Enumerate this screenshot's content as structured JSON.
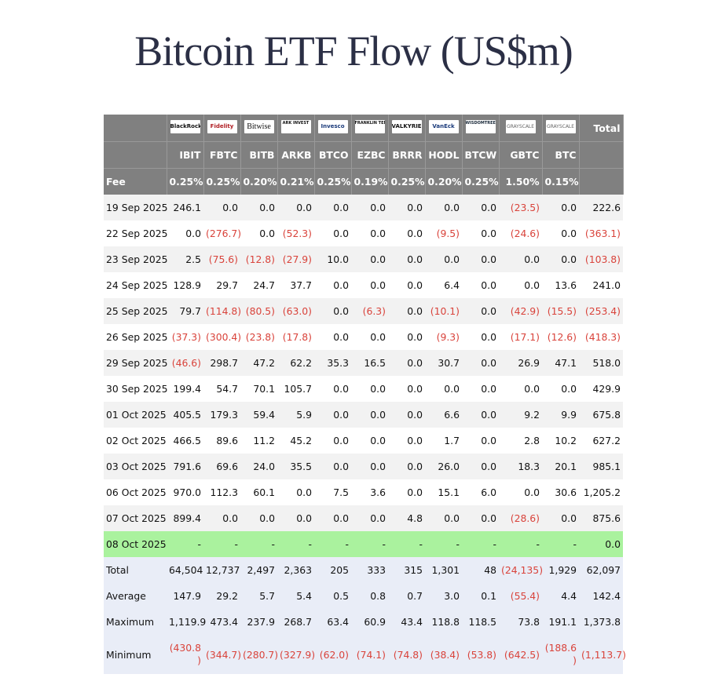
{
  "title": "Bitcoin ETF Flow (US$m)",
  "logos": [
    {
      "text": "BlackRock",
      "icon": "blackrock-logo"
    },
    {
      "text": "Fidelity",
      "icon": "fidelity-logo"
    },
    {
      "text": "Bitwise",
      "icon": "bitwise-logo"
    },
    {
      "text": "ARK INVEST",
      "icon": "ark-logo"
    },
    {
      "text": "Invesco",
      "icon": "invesco-logo"
    },
    {
      "text": "FRANKLIN TEMPLETON",
      "icon": "franklin-logo"
    },
    {
      "text": "VALKYRIE",
      "icon": "valkyrie-logo"
    },
    {
      "text": "VanEck",
      "icon": "vaneck-logo"
    },
    {
      "text": "WISDOMTREE",
      "icon": "wisdomtree-logo"
    },
    {
      "text": "GRAYSCALE",
      "icon": "grayscale-logo"
    },
    {
      "text": "GRAYSCALE",
      "icon": "grayscale-logo"
    }
  ],
  "total_header": "Total",
  "tickers": [
    "IBIT",
    "FBTC",
    "BITB",
    "ARKB",
    "BTCO",
    "EZBC",
    "BRRR",
    "HODL",
    "BTCW",
    "GBTC",
    "BTC"
  ],
  "fee_label": "Fee",
  "fees": [
    "0.25%",
    "0.25%",
    "0.20%",
    "0.21%",
    "0.25%",
    "0.19%",
    "0.25%",
    "0.20%",
    "0.25%",
    "1.50%",
    "0.15%"
  ],
  "rows": [
    {
      "date": "19 Sep 2025",
      "values": [
        "246.1",
        "0.0",
        "0.0",
        "0.0",
        "0.0",
        "0.0",
        "0.0",
        "0.0",
        "0.0",
        "(23.5)",
        "0.0"
      ],
      "total": "222.6"
    },
    {
      "date": "22 Sep 2025",
      "values": [
        "0.0",
        "(276.7)",
        "0.0",
        "(52.3)",
        "0.0",
        "0.0",
        "0.0",
        "(9.5)",
        "0.0",
        "(24.6)",
        "0.0"
      ],
      "total": "(363.1)"
    },
    {
      "date": "23 Sep 2025",
      "values": [
        "2.5",
        "(75.6)",
        "(12.8)",
        "(27.9)",
        "10.0",
        "0.0",
        "0.0",
        "0.0",
        "0.0",
        "0.0",
        "0.0"
      ],
      "total": "(103.8)"
    },
    {
      "date": "24 Sep 2025",
      "values": [
        "128.9",
        "29.7",
        "24.7",
        "37.7",
        "0.0",
        "0.0",
        "0.0",
        "6.4",
        "0.0",
        "0.0",
        "13.6"
      ],
      "total": "241.0"
    },
    {
      "date": "25 Sep 2025",
      "values": [
        "79.7",
        "(114.8)",
        "(80.5)",
        "(63.0)",
        "0.0",
        "(6.3)",
        "0.0",
        "(10.1)",
        "0.0",
        "(42.9)",
        "(15.5)"
      ],
      "total": "(253.4)"
    },
    {
      "date": "26 Sep 2025",
      "values": [
        "(37.3)",
        "(300.4)",
        "(23.8)",
        "(17.8)",
        "0.0",
        "0.0",
        "0.0",
        "(9.3)",
        "0.0",
        "(17.1)",
        "(12.6)"
      ],
      "total": "(418.3)"
    },
    {
      "date": "29 Sep 2025",
      "values": [
        "(46.6)",
        "298.7",
        "47.2",
        "62.2",
        "35.3",
        "16.5",
        "0.0",
        "30.7",
        "0.0",
        "26.9",
        "47.1"
      ],
      "total": "518.0"
    },
    {
      "date": "30 Sep 2025",
      "values": [
        "199.4",
        "54.7",
        "70.1",
        "105.7",
        "0.0",
        "0.0",
        "0.0",
        "0.0",
        "0.0",
        "0.0",
        "0.0"
      ],
      "total": "429.9"
    },
    {
      "date": "01 Oct 2025",
      "values": [
        "405.5",
        "179.3",
        "59.4",
        "5.9",
        "0.0",
        "0.0",
        "0.0",
        "6.6",
        "0.0",
        "9.2",
        "9.9"
      ],
      "total": "675.8"
    },
    {
      "date": "02 Oct 2025",
      "values": [
        "466.5",
        "89.6",
        "11.2",
        "45.2",
        "0.0",
        "0.0",
        "0.0",
        "1.7",
        "0.0",
        "2.8",
        "10.2"
      ],
      "total": "627.2"
    },
    {
      "date": "03 Oct 2025",
      "values": [
        "791.6",
        "69.6",
        "24.0",
        "35.5",
        "0.0",
        "0.0",
        "0.0",
        "26.0",
        "0.0",
        "18.3",
        "20.1"
      ],
      "total": "985.1"
    },
    {
      "date": "06 Oct 2025",
      "values": [
        "970.0",
        "112.3",
        "60.1",
        "0.0",
        "7.5",
        "3.6",
        "0.0",
        "15.1",
        "6.0",
        "0.0",
        "30.6"
      ],
      "total": "1,205.2"
    },
    {
      "date": "07 Oct 2025",
      "values": [
        "899.4",
        "0.0",
        "0.0",
        "0.0",
        "0.0",
        "0.0",
        "4.8",
        "0.0",
        "0.0",
        "(28.6)",
        "0.0"
      ],
      "total": "875.6"
    },
    {
      "date": "08 Oct 2025",
      "values": [
        "-",
        "-",
        "-",
        "-",
        "-",
        "-",
        "-",
        "-",
        "-",
        "-",
        "-"
      ],
      "total": "0.0",
      "highlight": true
    }
  ],
  "summary": [
    {
      "label": "Total",
      "values": [
        "64,504",
        "12,737",
        "2,497",
        "2,363",
        "205",
        "333",
        "315",
        "1,301",
        "48",
        "(24,135)",
        "1,929"
      ],
      "total": "62,097"
    },
    {
      "label": "Average",
      "values": [
        "147.9",
        "29.2",
        "5.7",
        "5.4",
        "0.5",
        "0.8",
        "0.7",
        "3.0",
        "0.1",
        "(55.4)",
        "4.4"
      ],
      "total": "142.4"
    },
    {
      "label": "Maximum",
      "values": [
        "1,119.9",
        "473.4",
        "237.9",
        "268.7",
        "63.4",
        "60.9",
        "43.4",
        "118.8",
        "118.5",
        "73.8",
        "191.1"
      ],
      "total": "1,373.8"
    },
    {
      "label": "Minimum",
      "values": [
        "(430.8)",
        "(344.7)",
        "(280.7)",
        "(327.9)",
        "(62.0)",
        "(74.1)",
        "(74.8)",
        "(38.4)",
        "(53.8)",
        "(642.5)",
        "(188.6)"
      ],
      "total": "(1,113.7)"
    }
  ],
  "colors": {
    "header_bg": "#808080",
    "negative": "#d9433b",
    "highlight": "#aaf29e",
    "summary_bg": "#e9edf7",
    "stripe": "#f2f2f2"
  }
}
